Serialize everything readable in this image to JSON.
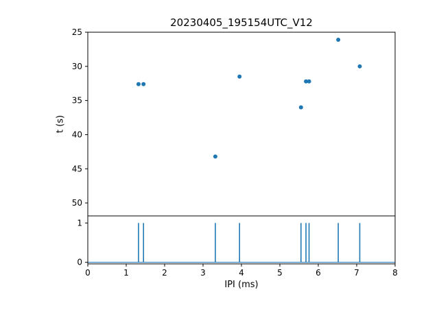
{
  "figure": {
    "background": "#ffffff",
    "accent_color": "#1f77b4",
    "spine_color": "#000000"
  },
  "chart_data": [
    {
      "type": "scatter",
      "title": "20230405_195154UTC_V12",
      "xlabel": "",
      "ylabel": "t (s)",
      "xlim": [
        0,
        8
      ],
      "ylim": [
        25,
        51.9
      ],
      "y_inverted": true,
      "yticks": [
        25,
        30,
        35,
        40,
        45,
        50
      ],
      "grid": false,
      "legend": "none",
      "marker": {
        "size": 3,
        "color": "#1f77b4"
      },
      "points": [
        {
          "x": 1.32,
          "y": 32.6
        },
        {
          "x": 1.45,
          "y": 32.6
        },
        {
          "x": 3.32,
          "y": 43.2
        },
        {
          "x": 3.95,
          "y": 31.5
        },
        {
          "x": 5.55,
          "y": 36.0
        },
        {
          "x": 5.68,
          "y": 32.2
        },
        {
          "x": 5.76,
          "y": 32.2
        },
        {
          "x": 6.52,
          "y": 26.1
        },
        {
          "x": 7.08,
          "y": 30.0
        }
      ]
    },
    {
      "type": "spike",
      "title": "",
      "xlabel": "IPI (ms)",
      "ylabel": "",
      "xlim": [
        0,
        8
      ],
      "ylim": [
        -0.04,
        1.18
      ],
      "yticks": [
        0,
        1
      ],
      "xticks": [
        0,
        1,
        2,
        3,
        4,
        5,
        6,
        7,
        8
      ],
      "grid": false,
      "legend": "none",
      "line_color": "#1f77b4",
      "spike_height": 1,
      "baseline": 0,
      "spikes_x": [
        1.32,
        1.45,
        3.32,
        3.95,
        5.55,
        5.68,
        5.76,
        6.52,
        7.08
      ]
    }
  ]
}
